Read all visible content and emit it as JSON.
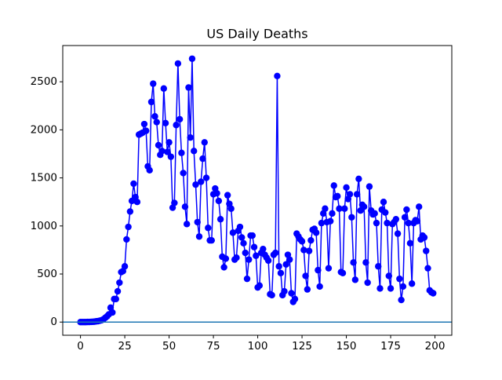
{
  "chart_data": {
    "type": "line",
    "title": "US Daily Deaths",
    "x": [
      0,
      1,
      2,
      3,
      4,
      5,
      6,
      7,
      8,
      9,
      10,
      11,
      12,
      13,
      14,
      15,
      16,
      17,
      18,
      19,
      20,
      21,
      22,
      23,
      24,
      25,
      26,
      27,
      28,
      29,
      30,
      31,
      32,
      33,
      34,
      35,
      36,
      37,
      38,
      39,
      40,
      41,
      42,
      43,
      44,
      45,
      46,
      47,
      48,
      49,
      50,
      51,
      52,
      53,
      54,
      55,
      56,
      57,
      58,
      59,
      60,
      61,
      62,
      63,
      64,
      65,
      66,
      67,
      68,
      69,
      70,
      71,
      72,
      73,
      74,
      75,
      76,
      77,
      78,
      79,
      80,
      81,
      82,
      83,
      84,
      85,
      86,
      87,
      88,
      89,
      90,
      91,
      92,
      93,
      94,
      95,
      96,
      97,
      98,
      99,
      100,
      101,
      102,
      103,
      104,
      105,
      106,
      107,
      108,
      109,
      110,
      111,
      112,
      113,
      114,
      115,
      116,
      117,
      118,
      119,
      120,
      121,
      122,
      123,
      124,
      125,
      126,
      127,
      128,
      129,
      130,
      131,
      132,
      133,
      134,
      135,
      136,
      137,
      138,
      139,
      140,
      141,
      142,
      143,
      144,
      145,
      146,
      147,
      148,
      149,
      150,
      151,
      152,
      153,
      154,
      155,
      156,
      157,
      158,
      159,
      160,
      161,
      162,
      163,
      164,
      165,
      166,
      167,
      168,
      169,
      170,
      171,
      172,
      173,
      174,
      175,
      176,
      177,
      178,
      179,
      180,
      181,
      182,
      183,
      184,
      185,
      186,
      187,
      188,
      189,
      190,
      191,
      192,
      193,
      194,
      195,
      196,
      197,
      198,
      199
    ],
    "series": [
      {
        "color": "#0000ff",
        "values": [
          0,
          0,
          0,
          0,
          1,
          1,
          2,
          3,
          5,
          8,
          10,
          15,
          20,
          30,
          45,
          60,
          80,
          150,
          100,
          240,
          240,
          320,
          410,
          520,
          530,
          580,
          860,
          990,
          1150,
          1260,
          1440,
          1300,
          1250,
          1950,
          1960,
          1970,
          2060,
          1990,
          1620,
          1580,
          2290,
          2480,
          2140,
          2080,
          1840,
          1740,
          1780,
          2430,
          2070,
          1770,
          1870,
          1720,
          1190,
          1240,
          2050,
          2690,
          2110,
          1760,
          1550,
          1200,
          1020,
          2440,
          1920,
          2740,
          1780,
          1430,
          1040,
          890,
          1460,
          1700,
          1870,
          1500,
          980,
          850,
          850,
          1330,
          1390,
          1340,
          1260,
          1070,
          680,
          570,
          660,
          1320,
          1230,
          1180,
          930,
          650,
          670,
          950,
          990,
          880,
          820,
          720,
          450,
          650,
          900,
          900,
          780,
          690,
          360,
          380,
          720,
          760,
          700,
          670,
          640,
          290,
          280,
          700,
          720,
          2560,
          580,
          510,
          280,
          320,
          600,
          700,
          650,
          300,
          210,
          240,
          920,
          890,
          860,
          840,
          750,
          480,
          340,
          740,
          850,
          960,
          970,
          930,
          540,
          370,
          1030,
          1130,
          1180,
          1040,
          560,
          1050,
          1130,
          1420,
          1300,
          1310,
          1180,
          520,
          510,
          1180,
          1400,
          1280,
          1330,
          1090,
          620,
          440,
          1330,
          1490,
          1160,
          1220,
          1200,
          620,
          410,
          1410,
          1160,
          1120,
          1130,
          1030,
          580,
          350,
          1170,
          1250,
          1140,
          1030,
          480,
          350,
          1020,
          1040,
          1070,
          920,
          450,
          230,
          370,
          1090,
          1170,
          1030,
          820,
          400,
          1030,
          1060,
          1050,
          1200,
          860,
          900,
          880,
          740,
          560,
          330,
          310,
          300
        ]
      }
    ],
    "reference_line": {
      "value": 0,
      "color": "#1f77b4"
    },
    "xlim": [
      -10,
      209.5
    ],
    "xticks": [
      0,
      25,
      50,
      75,
      100,
      125,
      150,
      175,
      200
    ],
    "ylim": [
      -137,
      2877
    ],
    "yticks": [
      0,
      500,
      1000,
      1500,
      2000,
      2500
    ]
  }
}
